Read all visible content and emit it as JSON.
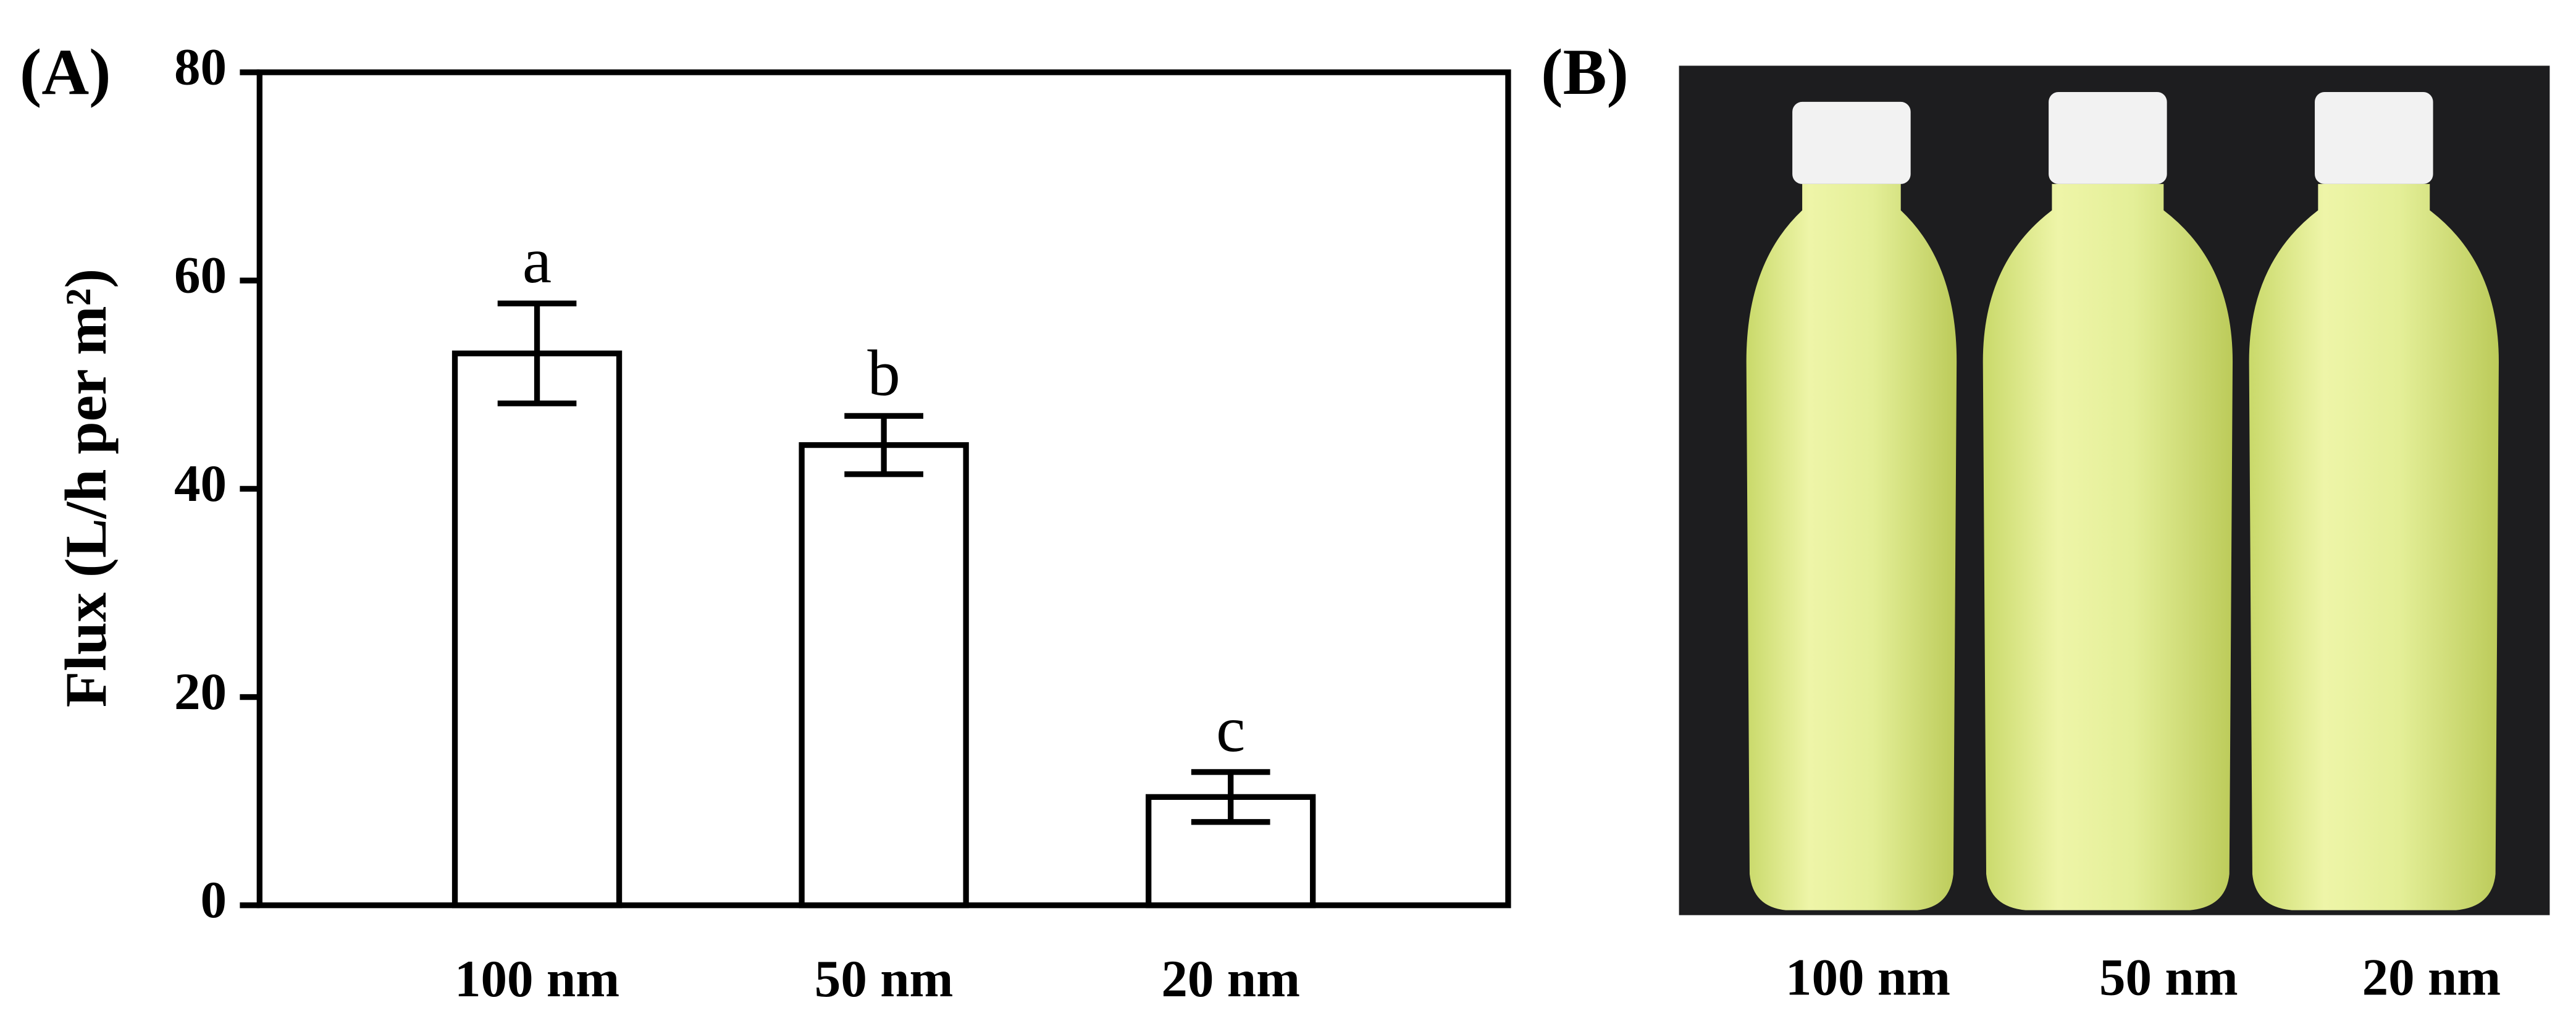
{
  "chart_data": {
    "type": "bar",
    "panel_label": "(A)",
    "y_label": "Flux (L/h per m²)",
    "categories": [
      "100 nm",
      "50 nm",
      "20 nm"
    ],
    "values": [
      53,
      44.2,
      10.4
    ],
    "errors": [
      4.8,
      2.8,
      2.4
    ],
    "annotations": [
      "a",
      "b",
      "c"
    ],
    "color": "#ffffff",
    "ylim": [
      0,
      80
    ],
    "yticks": [
      0,
      20,
      40,
      60,
      80
    ],
    "grid": false
  },
  "photo": {
    "panel_label": "(B)",
    "labels": [
      "100 nm",
      "50 nm",
      "20 nm"
    ]
  }
}
